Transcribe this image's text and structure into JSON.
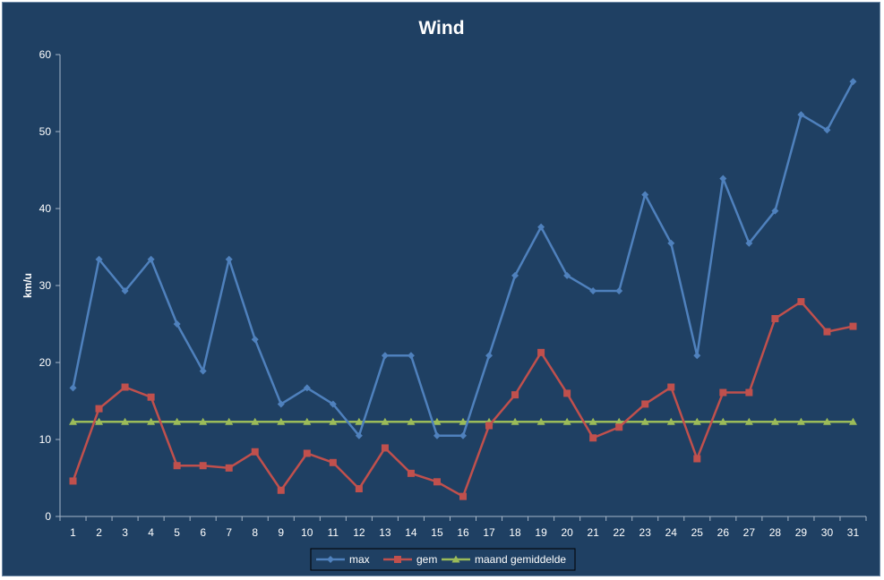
{
  "chart_data": {
    "type": "line",
    "title": "Wind",
    "xlabel": "",
    "ylabel": "km/u",
    "ylim": [
      0,
      60
    ],
    "yticks": [
      0,
      10,
      20,
      30,
      40,
      50,
      60
    ],
    "grid": false,
    "legend_position": "bottom",
    "categories": [
      "1",
      "2",
      "3",
      "4",
      "5",
      "6",
      "7",
      "8",
      "9",
      "10",
      "11",
      "12",
      "13",
      "14",
      "15",
      "16",
      "17",
      "18",
      "19",
      "20",
      "21",
      "22",
      "23",
      "24",
      "25",
      "26",
      "27",
      "28",
      "29",
      "30",
      "31"
    ],
    "series": [
      {
        "name": "max",
        "color": "#4f81bd",
        "marker": "diamond",
        "values": [
          16.7,
          33.4,
          29.3,
          33.4,
          25.0,
          18.9,
          33.4,
          23.0,
          14.6,
          16.7,
          14.6,
          10.5,
          20.9,
          20.9,
          10.5,
          10.5,
          20.9,
          31.3,
          37.6,
          31.3,
          29.3,
          29.3,
          41.8,
          35.5,
          20.9,
          43.9,
          35.5,
          39.7,
          52.2,
          50.2,
          56.5
        ]
      },
      {
        "name": "gem",
        "color": "#c0504d",
        "marker": "square",
        "values": [
          4.6,
          14.0,
          16.8,
          15.5,
          6.6,
          6.6,
          6.3,
          8.4,
          3.4,
          8.2,
          7.0,
          3.6,
          8.9,
          5.6,
          4.5,
          2.6,
          11.8,
          15.8,
          21.3,
          16.0,
          10.2,
          11.6,
          14.6,
          16.8,
          7.5,
          16.1,
          16.1,
          25.7,
          27.9,
          24.0,
          24.7
        ]
      },
      {
        "name": "maand gemiddelde",
        "color": "#9bbb59",
        "marker": "triangle",
        "values": [
          12.3,
          12.3,
          12.3,
          12.3,
          12.3,
          12.3,
          12.3,
          12.3,
          12.3,
          12.3,
          12.3,
          12.3,
          12.3,
          12.3,
          12.3,
          12.3,
          12.3,
          12.3,
          12.3,
          12.3,
          12.3,
          12.3,
          12.3,
          12.3,
          12.3,
          12.3,
          12.3,
          12.3,
          12.3,
          12.3,
          12.3
        ]
      }
    ]
  }
}
